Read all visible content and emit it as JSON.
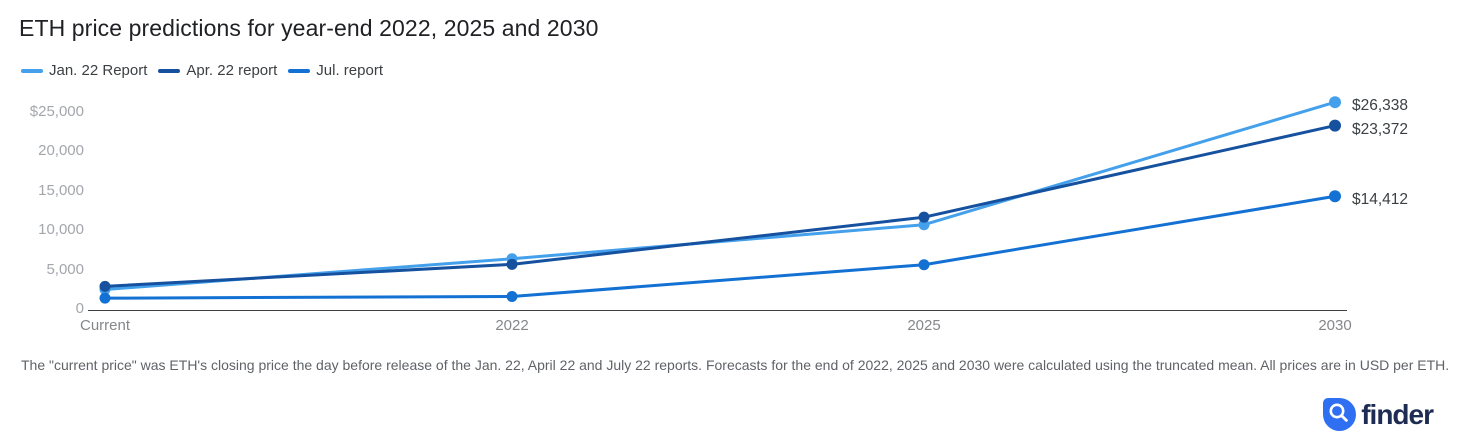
{
  "title": "ETH price predictions for year-end 2022, 2025 and 2030",
  "chart_data": {
    "type": "line",
    "categories": [
      "Current",
      "2022",
      "2025",
      "2030"
    ],
    "series": [
      {
        "name": "Jan. 22 Report",
        "color": "#44A0EA",
        "values": [
          2600,
          6500,
          10810,
          26338
        ],
        "end_label": "$26,338"
      },
      {
        "name": "Apr. 22 report",
        "color": "#15519F",
        "values": [
          3000,
          5783,
          11764,
          23372
        ],
        "end_label": "$23,372"
      },
      {
        "name": "Jul. report",
        "color": "#1371D4",
        "values": [
          1500,
          1711,
          5739,
          14412
        ],
        "end_label": "$14,412"
      }
    ],
    "yticks": [
      {
        "value": 25000,
        "label": "$25,000"
      },
      {
        "value": 20000,
        "label": "20,000"
      },
      {
        "value": 15000,
        "label": "15,000"
      },
      {
        "value": 10000,
        "label": "10,000"
      },
      {
        "value": 5000,
        "label": "5,000"
      },
      {
        "value": 0,
        "label": "0"
      }
    ],
    "ylim": [
      0,
      26500
    ],
    "grid": false,
    "legend_position": "top-left",
    "xlabel": "",
    "ylabel": ""
  },
  "footnote": "The \"current price\" was ETH's closing price the day before release of the Jan. 22, April 22 and July 22 reports. Forecasts for the end of 2022, 2025 and 2030 were calculated using the truncated mean. All prices are in USD per ETH.",
  "logo": {
    "text": "finder",
    "icon": "magnifier-icon"
  },
  "colors": {
    "background": "#ffffff",
    "axis": "#3c4043",
    "ytick_text": "#a3a7ab",
    "xtick_text": "#85878a",
    "value_label_text": "#3c4043",
    "logo_blue": "#2F6FF2",
    "logo_navy": "#1E2B52"
  }
}
